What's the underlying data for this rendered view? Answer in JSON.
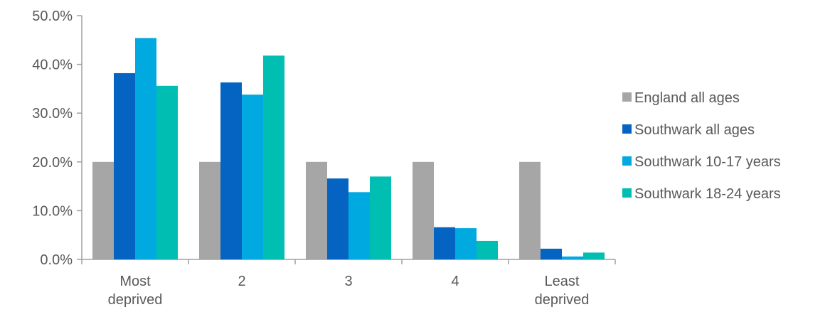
{
  "chart_data": {
    "type": "bar",
    "categories": [
      [
        "Most",
        "deprived"
      ],
      [
        "2"
      ],
      [
        "3"
      ],
      [
        "4"
      ],
      [
        "Least",
        "deprived"
      ]
    ],
    "series": [
      {
        "name": "England all ages",
        "color": "#a6a6a6",
        "values": [
          20.0,
          20.0,
          20.0,
          20.0,
          20.0
        ]
      },
      {
        "name": "Southwark all ages",
        "color": "#0563c1",
        "values": [
          38.2,
          36.3,
          16.6,
          6.6,
          2.2
        ]
      },
      {
        "name": "Southwark 10-17 years",
        "color": "#00a9e0",
        "values": [
          45.4,
          33.8,
          13.8,
          6.4,
          0.6
        ]
      },
      {
        "name": "Southwark 18-24 years",
        "color": "#00bfb2",
        "values": [
          35.6,
          41.8,
          17.0,
          3.8,
          1.4
        ]
      }
    ],
    "ylim": [
      0,
      50
    ],
    "yticks": [
      "0.0%",
      "10.0%",
      "20.0%",
      "30.0%",
      "40.0%",
      "50.0%"
    ],
    "legend_position": "right",
    "grid": false
  }
}
